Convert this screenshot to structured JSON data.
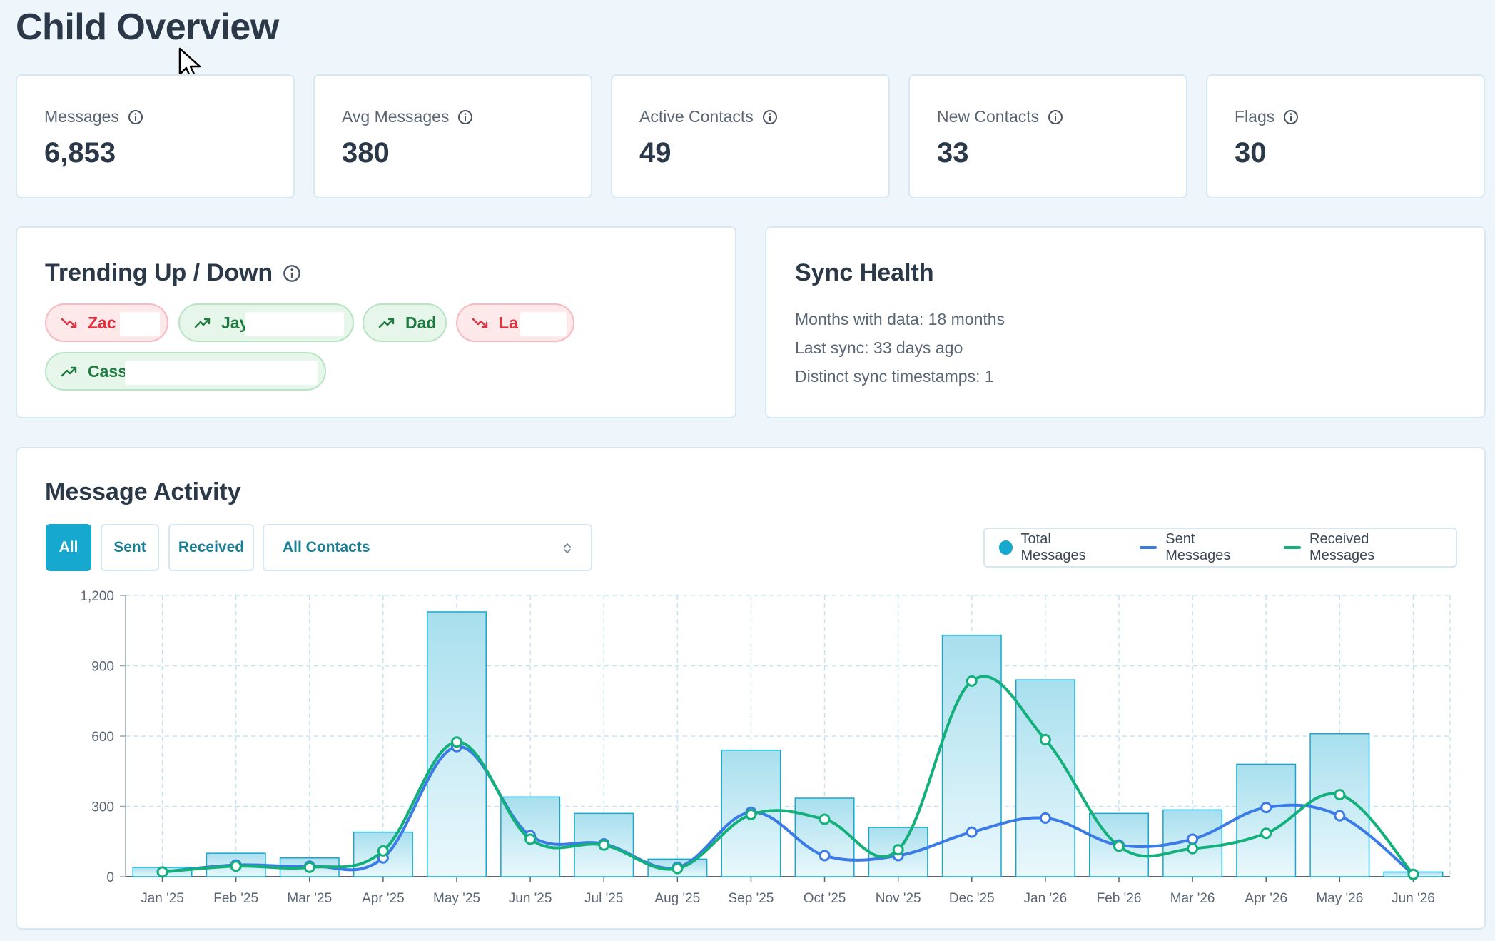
{
  "page": {
    "title": "Child Overview"
  },
  "stats": [
    {
      "label": "Messages",
      "value": "6,853"
    },
    {
      "label": "Avg Messages",
      "value": "380"
    },
    {
      "label": "Active Contacts",
      "value": "49"
    },
    {
      "label": "New Contacts",
      "value": "33"
    },
    {
      "label": "Flags",
      "value": "30"
    }
  ],
  "trending": {
    "title": "Trending Up / Down",
    "chips": [
      {
        "label": "Zac",
        "direction": "down"
      },
      {
        "label": "Jay",
        "direction": "up"
      },
      {
        "label": "Dad",
        "direction": "up"
      },
      {
        "label": "La",
        "direction": "down"
      },
      {
        "label": "Cass",
        "direction": "up"
      }
    ]
  },
  "sync": {
    "title": "Sync Health",
    "lines": [
      "Months with data: 18 months",
      "Last sync: 33 days ago",
      "Distinct sync timestamps: 1"
    ]
  },
  "activity": {
    "title": "Message Activity",
    "filters": {
      "all": "All",
      "sent": "Sent",
      "received": "Received"
    },
    "active_filter": "All",
    "contact_select": "All Contacts",
    "legend": {
      "total": "Total Messages",
      "sent": "Sent Messages",
      "received": "Received Messages"
    }
  },
  "colors": {
    "accent": "#17a8cf",
    "sent": "#3b7be8",
    "received": "#14b07c",
    "down": "#e2313e",
    "up": "#1f7a3f"
  },
  "chart_data": {
    "type": "bar",
    "categories": [
      "Jan '25",
      "Feb '25",
      "Mar '25",
      "Apr '25",
      "May '25",
      "Jun '25",
      "Jul '25",
      "Aug '25",
      "Sep '25",
      "Oct '25",
      "Nov '25",
      "Dec '25",
      "Jan '26",
      "Feb '26",
      "Mar '26",
      "Apr '26",
      "May '26",
      "Jun '26"
    ],
    "series": [
      {
        "name": "Total Messages",
        "type": "bar",
        "values": [
          40,
          100,
          80,
          190,
          1130,
          340,
          270,
          75,
          540,
          335,
          210,
          1030,
          840,
          270,
          285,
          480,
          610,
          20
        ]
      },
      {
        "name": "Sent Messages",
        "type": "line",
        "values": [
          20,
          50,
          45,
          80,
          555,
          175,
          140,
          40,
          275,
          90,
          90,
          190,
          250,
          135,
          160,
          295,
          260,
          10
        ]
      },
      {
        "name": "Received Messages",
        "type": "line",
        "values": [
          20,
          45,
          40,
          110,
          575,
          160,
          135,
          35,
          265,
          245,
          115,
          835,
          585,
          130,
          120,
          185,
          350,
          10
        ]
      }
    ],
    "yticks": [
      "1,200",
      "900",
      "600",
      "300",
      "0"
    ],
    "ylim": [
      0,
      1200
    ],
    "grid": true
  }
}
